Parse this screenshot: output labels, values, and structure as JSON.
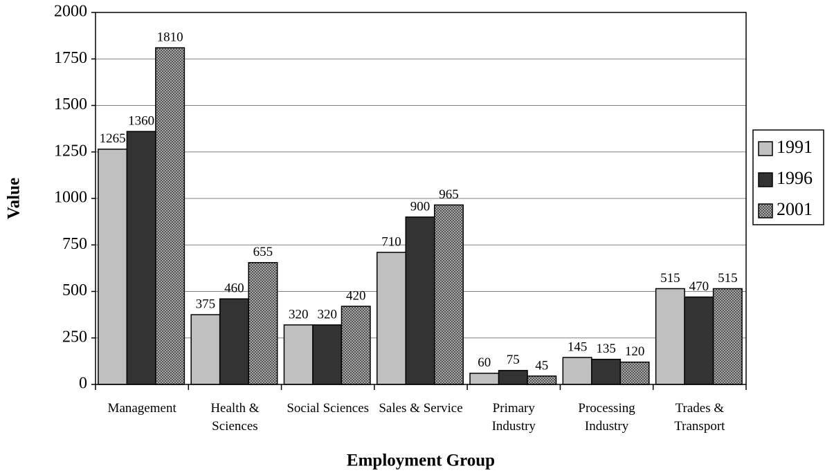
{
  "chart_data": {
    "type": "bar",
    "x_label": "Employment Group",
    "y_label": "Value",
    "categories": [
      "Management",
      "Health & Sciences",
      "Social Sciences",
      "Sales & Service",
      "Primary Industry",
      "Processing Industry",
      "Trades & Transport"
    ],
    "series": [
      {
        "name": "1991",
        "color": "#c0c0c0",
        "values": [
          1265,
          375,
          320,
          710,
          60,
          145,
          515
        ]
      },
      {
        "name": "1996",
        "color": "#333333",
        "values": [
          1360,
          460,
          320,
          900,
          75,
          135,
          470
        ]
      },
      {
        "name": "2001",
        "color": "#a8a8a8",
        "values": [
          1810,
          655,
          420,
          965,
          45,
          120,
          515
        ]
      }
    ],
    "ylim": [
      0,
      2000
    ],
    "yticks": [
      0,
      250,
      500,
      750,
      1000,
      1250,
      1500,
      1750,
      2000
    ],
    "grid": true,
    "legend": "right"
  }
}
